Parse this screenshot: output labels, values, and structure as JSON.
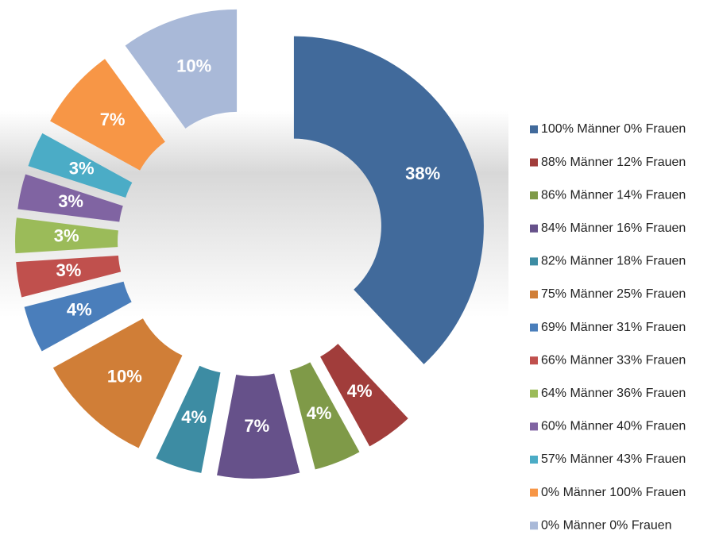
{
  "chart_data": {
    "type": "donut",
    "categories": [
      "100% Männer 0% Frauen",
      "88% Männer 12% Frauen",
      "86% Männer 14% Frauen",
      "84% Männer 16% Frauen",
      "82% Männer 18% Frauen",
      "75% Männer 25% Frauen",
      "69% Männer 31% Frauen",
      "66% Männer 33% Frauen",
      "64% Männer 36% Frauen",
      "60% Männer 40% Frauen",
      "57% Männer 43% Frauen",
      "0% Männer 100% Frauen",
      "0% Männer 0% Frauen"
    ],
    "values": [
      38,
      4,
      4,
      7,
      4,
      10,
      4,
      3,
      3,
      3,
      3,
      7,
      10
    ],
    "value_labels": [
      "38%",
      "4%",
      "4%",
      "7%",
      "4%",
      "10%",
      "4%",
      "3%",
      "3%",
      "3%",
      "3%",
      "7%",
      "10%"
    ],
    "colors": [
      "#416a9b",
      "#a13d3b",
      "#7f9a48",
      "#66518a",
      "#3d8ca3",
      "#d07e37",
      "#4a7ebb",
      "#c0504d",
      "#9bbb59",
      "#8064a2",
      "#4bacc6",
      "#f79646",
      "#a9b9d8"
    ],
    "legend": "right"
  }
}
